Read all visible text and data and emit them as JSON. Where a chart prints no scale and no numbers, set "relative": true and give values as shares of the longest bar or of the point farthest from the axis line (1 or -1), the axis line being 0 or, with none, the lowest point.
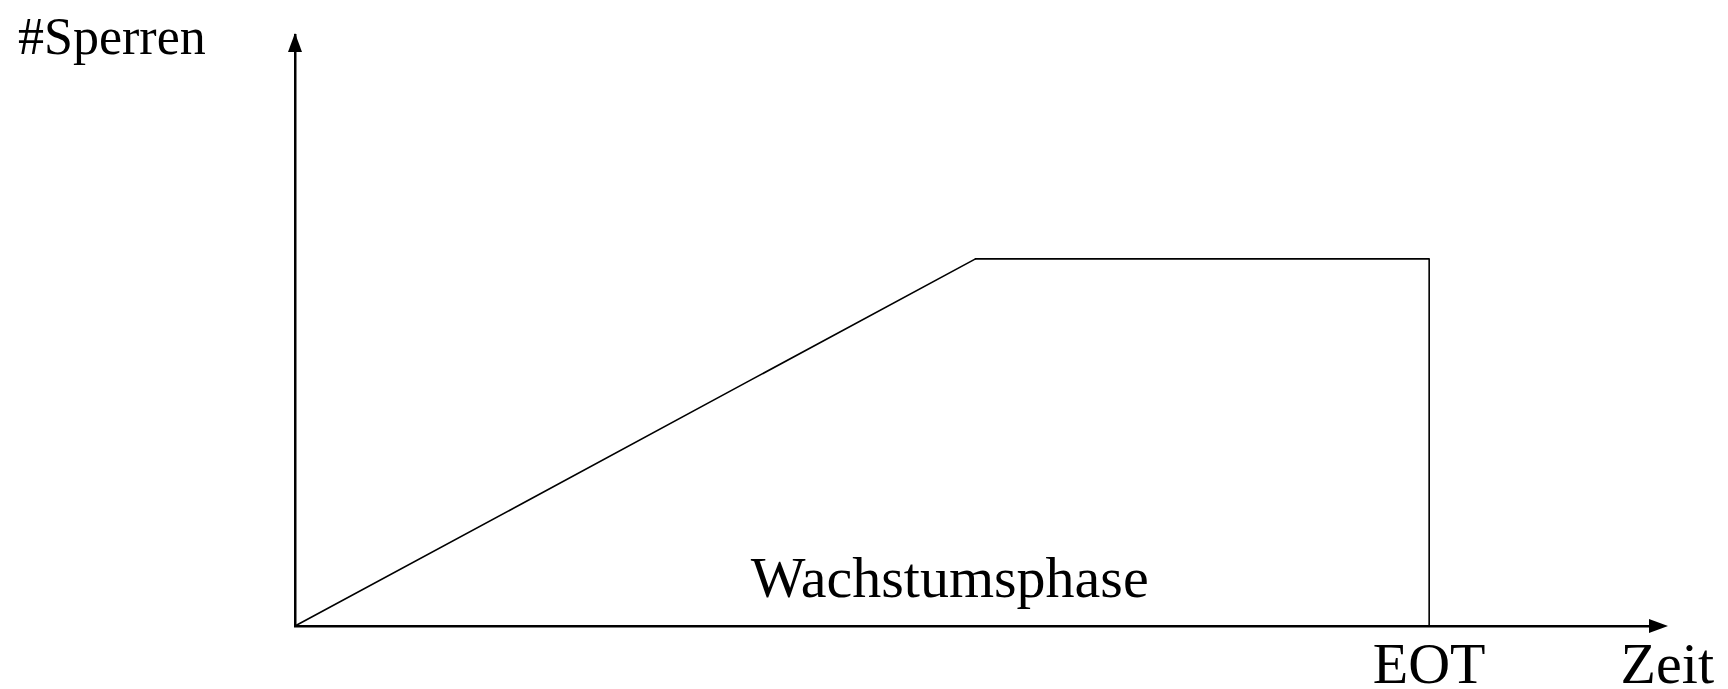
{
  "chart_data": {
    "type": "line",
    "xlabel": "Zeit",
    "ylabel": "#Sperren",
    "relative": true,
    "categories": [
      null,
      null,
      null,
      null,
      null,
      null,
      null
    ],
    "series": [
      {
        "color": "#000000",
        "values": [
          0,
          0.333,
          0.667,
          1,
          null,
          null,
          null
        ]
      },
      {
        "type": "step",
        "color": "#000000",
        "values": [
          null,
          null,
          null,
          1,
          1,
          0,
          null
        ]
      }
    ],
    "marker": "none",
    "line_style": "solid",
    "annotations": [
      "Wachstumsphase",
      "EOT"
    ]
  }
}
